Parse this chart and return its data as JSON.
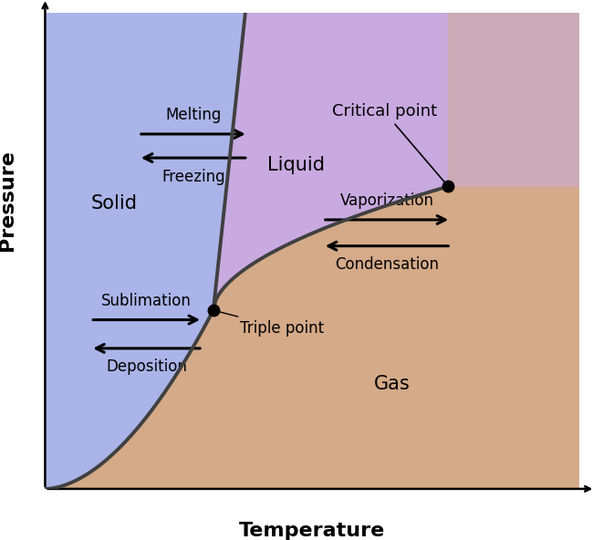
{
  "xlabel": "Temperature",
  "ylabel": "Pressure",
  "background_color": "#ffffff",
  "solid_color": "#aab4e8",
  "liquid_color": "#c9aae0",
  "gas_color": "#d4aa88",
  "curve_color": "#404040",
  "curve_linewidth": 2.8,
  "triple_point": [
    0.315,
    0.375
  ],
  "critical_point": [
    0.755,
    0.635
  ],
  "fontsize_phase": 15,
  "fontsize_label": 12,
  "fontsize_axis": 15
}
